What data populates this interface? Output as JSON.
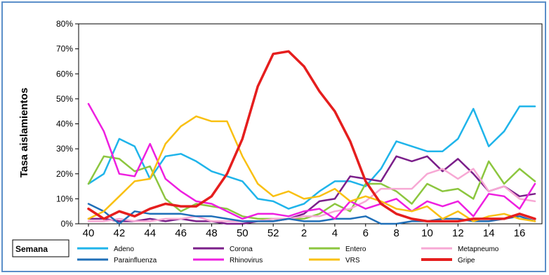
{
  "chart_data": {
    "type": "line",
    "title": "",
    "ylabel": "Tasa aislamientos",
    "xlabel": "Semana",
    "ylim": [
      0,
      80
    ],
    "y_ticks": [
      "0%",
      "10%",
      "20%",
      "30%",
      "40%",
      "50%",
      "60%",
      "70%",
      "80%"
    ],
    "x": [
      "40",
      "41",
      "42",
      "43",
      "44",
      "45",
      "46",
      "47",
      "48",
      "49",
      "50",
      "51",
      "52",
      "1",
      "2",
      "3",
      "4",
      "5",
      "6",
      "7",
      "8",
      "9",
      "10",
      "11",
      "12",
      "13",
      "14",
      "15",
      "16",
      "17"
    ],
    "x_tick_labels": [
      "40",
      "42",
      "44",
      "46",
      "48",
      "50",
      "52",
      "2",
      "4",
      "6",
      "8",
      "10",
      "12",
      "14",
      "16"
    ],
    "legend_position": "bottom",
    "series": [
      {
        "name": "Adeno",
        "color": "#1fb4ea",
        "values": [
          16,
          20,
          34,
          31,
          18,
          27,
          28,
          25,
          21,
          19,
          17,
          10,
          9,
          6,
          8,
          13,
          17,
          17,
          15,
          22,
          33,
          31,
          29,
          29,
          34,
          46,
          31,
          37,
          47,
          47
        ]
      },
      {
        "name": "Corona",
        "color": "#7b1f8a",
        "values": [
          2,
          2,
          1,
          1,
          2,
          1,
          2,
          1,
          1,
          0,
          0,
          1,
          1,
          2,
          4,
          9,
          10,
          19,
          18,
          17,
          27,
          25,
          27,
          21,
          26,
          20,
          13,
          15,
          11,
          12
        ]
      },
      {
        "name": "Entero",
        "color": "#8cc63f",
        "values": [
          16,
          27,
          26,
          21,
          23,
          10,
          5,
          8,
          7,
          6,
          3,
          2,
          2,
          2,
          2,
          4,
          8,
          5,
          16,
          16,
          13,
          8,
          16,
          13,
          14,
          10,
          25,
          16,
          22,
          17
        ]
      },
      {
        "name": "Metapneumo",
        "color": "#f7a8d4",
        "values": [
          1,
          1,
          2,
          1,
          1,
          2,
          2,
          3,
          1,
          1,
          1,
          1,
          2,
          2,
          3,
          3,
          5,
          6,
          9,
          14,
          14,
          14,
          20,
          22,
          18,
          22,
          13,
          15,
          10,
          9
        ]
      },
      {
        "name": "Parainfluenza",
        "color": "#1f6fb8",
        "values": [
          8,
          5,
          0,
          5,
          4,
          4,
          4,
          3,
          3,
          2,
          1,
          1,
          1,
          2,
          1,
          1,
          2,
          2,
          3,
          0,
          0,
          1,
          1,
          2,
          2,
          1,
          1,
          2,
          3,
          1
        ]
      },
      {
        "name": "Rhinovirus",
        "color": "#ee1fe0",
        "values": [
          48,
          37,
          20,
          19,
          32,
          18,
          13,
          9,
          8,
          5,
          2,
          4,
          4,
          3,
          5,
          6,
          2,
          9,
          6,
          8,
          10,
          5,
          9,
          7,
          9,
          3,
          12,
          11,
          6,
          16
        ]
      },
      {
        "name": "VRS",
        "color": "#f9c012",
        "values": [
          2,
          5,
          11,
          17,
          18,
          32,
          39,
          43,
          41,
          41,
          27,
          16,
          11,
          13,
          10,
          11,
          14,
          9,
          11,
          9,
          6,
          5,
          7,
          2,
          5,
          1,
          3,
          4,
          2,
          1
        ]
      },
      {
        "name": "Gripe",
        "color": "#e51e1e",
        "values": [
          6,
          2,
          5,
          3,
          6,
          8,
          7,
          7,
          11,
          20,
          34,
          55,
          68,
          69,
          63,
          53,
          45,
          33,
          17,
          8,
          4,
          2,
          1,
          1,
          1,
          2,
          2,
          2,
          4,
          2
        ]
      }
    ]
  }
}
